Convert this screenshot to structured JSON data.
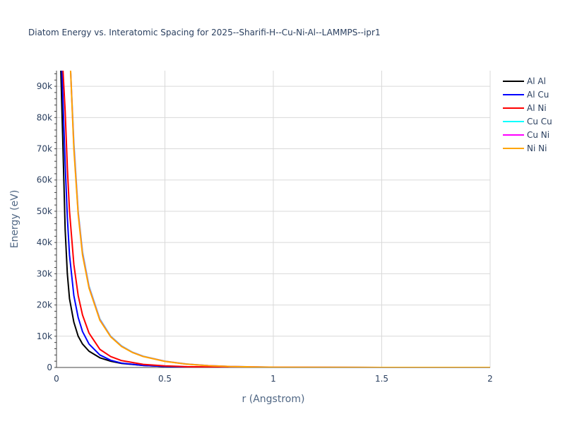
{
  "chart_data": {
    "type": "line",
    "title": "Diatom Energy vs. Interatomic Spacing for 2025--Sharifi-H--Cu-Ni-Al--LAMMPS--ipr1",
    "xlabel": "r (Angstrom)",
    "ylabel": "Energy (eV)",
    "xlim": [
      0,
      2
    ],
    "ylim": [
      0,
      95000
    ],
    "x_ticks": [
      0,
      0.5,
      1,
      1.5,
      2
    ],
    "x_tick_labels": [
      "0",
      "0.5",
      "1",
      "1.5",
      "2"
    ],
    "y_ticks": [
      0,
      10000,
      20000,
      30000,
      40000,
      50000,
      60000,
      70000,
      80000,
      90000
    ],
    "y_tick_labels": [
      "0",
      "10k",
      "20k",
      "30k",
      "40k",
      "50k",
      "60k",
      "70k",
      "80k",
      "90k"
    ],
    "grid": true,
    "legend_position": "top-right",
    "series": [
      {
        "name": "Al Al",
        "color": "#000000",
        "x": [
          0.02,
          0.03,
          0.04,
          0.05,
          0.06,
          0.08,
          0.1,
          0.12,
          0.15,
          0.2,
          0.25,
          0.3,
          0.4,
          0.5,
          0.6,
          0.8,
          1.0,
          1.5,
          2.0
        ],
        "y": [
          95000,
          70000,
          44000,
          30000,
          22000,
          14500,
          10000,
          7500,
          5200,
          3100,
          2000,
          1300,
          650,
          350,
          180,
          50,
          10,
          0,
          0
        ]
      },
      {
        "name": "Al Cu",
        "color": "#0000ff",
        "x": [
          0.025,
          0.03,
          0.04,
          0.05,
          0.06,
          0.08,
          0.1,
          0.12,
          0.15,
          0.2,
          0.25,
          0.3,
          0.4,
          0.5,
          0.6,
          0.8,
          1.0,
          1.5,
          2.0
        ],
        "y": [
          95000,
          85000,
          65000,
          48000,
          36000,
          23000,
          16000,
          11500,
          7500,
          4000,
          2300,
          1400,
          650,
          330,
          170,
          45,
          10,
          0,
          0
        ]
      },
      {
        "name": "Al Ni",
        "color": "#ff0000",
        "x": [
          0.03,
          0.04,
          0.05,
          0.06,
          0.08,
          0.1,
          0.12,
          0.15,
          0.2,
          0.25,
          0.3,
          0.4,
          0.5,
          0.6,
          0.8,
          1.0,
          1.5,
          2.0
        ],
        "y": [
          95000,
          82000,
          64000,
          50000,
          33000,
          23000,
          16800,
          11000,
          5800,
          3500,
          2200,
          1000,
          500,
          250,
          70,
          15,
          0,
          0
        ]
      },
      {
        "name": "Cu Cu",
        "color": "#00ffff",
        "x": [
          0.065,
          0.08,
          0.1,
          0.12,
          0.15,
          0.2,
          0.25,
          0.3,
          0.35,
          0.4,
          0.5,
          0.6,
          0.7,
          0.8,
          1.0,
          1.5,
          2.0
        ],
        "y": [
          95000,
          72000,
          50000,
          37000,
          26000,
          15500,
          10000,
          6900,
          4900,
          3600,
          2000,
          1100,
          600,
          320,
          90,
          0,
          0
        ]
      },
      {
        "name": "Cu Ni",
        "color": "#ff00ff",
        "x": [
          0.065,
          0.08,
          0.1,
          0.12,
          0.15,
          0.2,
          0.25,
          0.3,
          0.35,
          0.4,
          0.5,
          0.6,
          0.7,
          0.8,
          1.0,
          1.5,
          2.0
        ],
        "y": [
          95000,
          71000,
          49500,
          36500,
          25700,
          15300,
          9900,
          6800,
          4850,
          3550,
          1980,
          1080,
          590,
          310,
          85,
          0,
          0
        ]
      },
      {
        "name": "Ni Ni",
        "color": "#ffa500",
        "x": [
          0.065,
          0.08,
          0.1,
          0.12,
          0.15,
          0.2,
          0.25,
          0.3,
          0.35,
          0.4,
          0.5,
          0.6,
          0.7,
          0.8,
          1.0,
          1.5,
          2.0
        ],
        "y": [
          95000,
          70000,
          49000,
          36000,
          25400,
          15100,
          9800,
          6700,
          4800,
          3500,
          1950,
          1060,
          580,
          300,
          80,
          0,
          0
        ]
      }
    ]
  }
}
